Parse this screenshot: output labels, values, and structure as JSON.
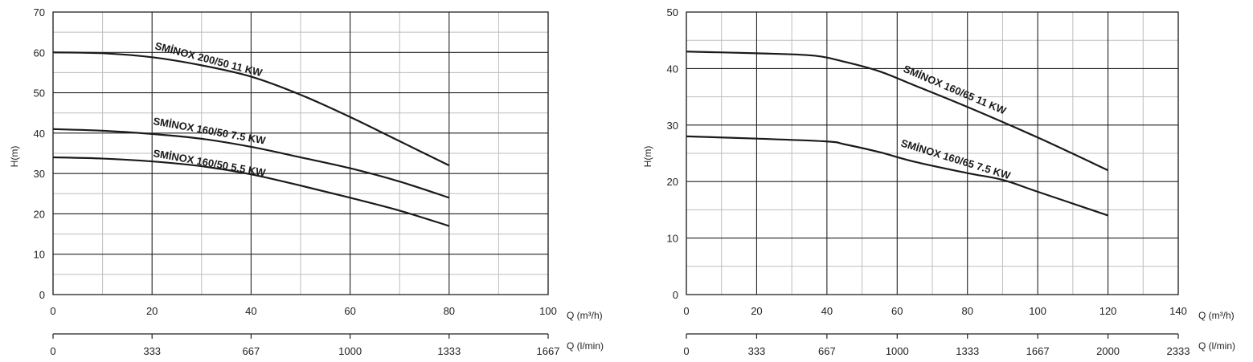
{
  "chart_data": [
    {
      "type": "line",
      "ylabel": "H(m)",
      "xlabel": "Q (m³/h)",
      "xlabel2": "Q (l/min)",
      "xlim": [
        0,
        100
      ],
      "ylim": [
        0,
        70
      ],
      "x_ticks": [
        "0",
        "20",
        "40",
        "60",
        "80",
        "100"
      ],
      "x_ticks_values": [
        0,
        20,
        40,
        60,
        80,
        100
      ],
      "x2_ticks": [
        "0",
        "333",
        "667",
        "1000",
        "1333",
        "1667"
      ],
      "y_ticks": [
        "0",
        "10",
        "20",
        "30",
        "40",
        "50",
        "60",
        "70"
      ],
      "y_ticks_values": [
        0,
        10,
        20,
        30,
        40,
        50,
        60,
        70
      ],
      "grid": true,
      "series": [
        {
          "name": "SMİNOX 200/50 11 KW",
          "x": [
            0,
            10,
            20,
            30,
            40,
            50,
            60,
            70,
            80
          ],
          "y": [
            60,
            59.8,
            58.8,
            56.8,
            54,
            49.5,
            44,
            38,
            32
          ]
        },
        {
          "name": "SMİNOX 160/50 7.5 KW",
          "x": [
            0,
            10,
            20,
            30,
            40,
            50,
            60,
            70,
            80
          ],
          "y": [
            41,
            40.6,
            39.8,
            38.6,
            36.6,
            34,
            31.3,
            28,
            24
          ]
        },
        {
          "name": "SMİNOX 160/50 5.5 KW",
          "x": [
            0,
            10,
            20,
            30,
            40,
            50,
            60,
            70,
            80
          ],
          "y": [
            34,
            33.7,
            33,
            31.8,
            29.8,
            27,
            24,
            20.8,
            17
          ]
        }
      ]
    },
    {
      "type": "line",
      "ylabel": "H(m)",
      "xlabel": "Q (m³/h)",
      "xlabel2": "Q (l/min)",
      "xlim": [
        0,
        140
      ],
      "ylim": [
        0,
        50
      ],
      "x_ticks": [
        "0",
        "20",
        "40",
        "60",
        "80",
        "100",
        "120",
        "140"
      ],
      "x_ticks_values": [
        0,
        20,
        40,
        60,
        80,
        100,
        120,
        140
      ],
      "x2_ticks": [
        "0",
        "333",
        "667",
        "1000",
        "1333",
        "1667",
        "2000",
        "2333"
      ],
      "y_ticks": [
        "0",
        "10",
        "20",
        "30",
        "40",
        "50"
      ],
      "y_ticks_values": [
        0,
        10,
        20,
        30,
        40,
        50
      ],
      "grid": true,
      "series": [
        {
          "name": "SMİNOX 160/65 11 KW",
          "x": [
            0,
            20,
            36,
            45,
            55,
            65,
            80,
            100,
            120
          ],
          "y": [
            43,
            42.7,
            42.3,
            41.2,
            39.5,
            37,
            33.2,
            27.8,
            22
          ]
        },
        {
          "name": "SMİNOX 160/65 7.5 KW",
          "x": [
            0,
            20,
            40,
            45,
            55,
            65,
            80,
            90,
            100,
            120
          ],
          "y": [
            28,
            27.6,
            27.1,
            26.6,
            25.2,
            23.5,
            21.5,
            20.3,
            18.2,
            14
          ]
        }
      ]
    }
  ]
}
